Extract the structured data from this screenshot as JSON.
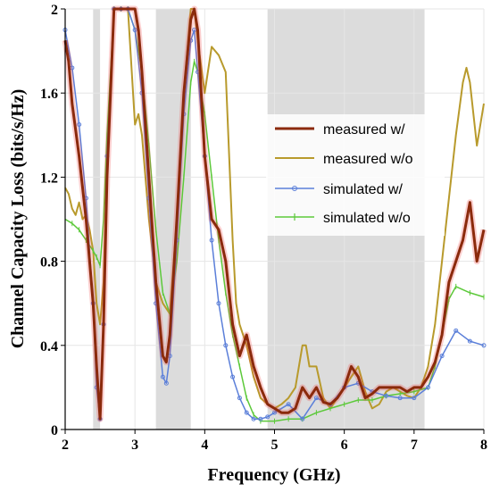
{
  "chart_data": {
    "type": "line",
    "title": "",
    "xlabel": "Frequency (GHz)",
    "ylabel": "Channel Capacity Loss (bits/s/Hz)",
    "xlim": [
      2,
      8
    ],
    "ylim": [
      0,
      2
    ],
    "x_ticks": [
      2,
      3,
      4,
      5,
      6,
      7,
      8
    ],
    "y_ticks": [
      0,
      0.4,
      0.8,
      1.2,
      1.6,
      2
    ],
    "grid": true,
    "legend_position": "right",
    "shaded_bands": [
      [
        2.4,
        2.5
      ],
      [
        3.3,
        3.8
      ],
      [
        4.9,
        7.15
      ]
    ],
    "series": [
      {
        "name": "measured w/",
        "color": "#8b2a0c",
        "x": [
          2.0,
          2.05,
          2.1,
          2.2,
          2.3,
          2.4,
          2.45,
          2.5,
          2.55,
          2.6,
          2.65,
          2.7,
          2.8,
          2.9,
          3.0,
          3.05,
          3.1,
          3.2,
          3.3,
          3.4,
          3.45,
          3.5,
          3.6,
          3.7,
          3.8,
          3.85,
          3.9,
          3.95,
          4.0,
          4.1,
          4.2,
          4.3,
          4.4,
          4.5,
          4.6,
          4.7,
          4.8,
          4.9,
          5.0,
          5.1,
          5.2,
          5.3,
          5.4,
          5.5,
          5.6,
          5.7,
          5.8,
          5.9,
          6.0,
          6.1,
          6.2,
          6.3,
          6.4,
          6.5,
          6.6,
          6.7,
          6.8,
          6.9,
          7.0,
          7.1,
          7.2,
          7.3,
          7.4,
          7.5,
          7.6,
          7.7,
          7.8,
          7.9,
          8.0
        ],
        "y": [
          1.85,
          1.75,
          1.55,
          1.3,
          1.0,
          0.6,
          0.3,
          0.05,
          0.5,
          1.2,
          1.6,
          2.0,
          2.0,
          2.0,
          2.0,
          1.9,
          1.7,
          1.2,
          0.7,
          0.35,
          0.32,
          0.45,
          1.0,
          1.6,
          1.95,
          2.0,
          1.9,
          1.6,
          1.3,
          1.0,
          0.95,
          0.8,
          0.5,
          0.35,
          0.45,
          0.3,
          0.2,
          0.12,
          0.1,
          0.08,
          0.08,
          0.1,
          0.2,
          0.15,
          0.2,
          0.13,
          0.12,
          0.15,
          0.2,
          0.3,
          0.25,
          0.15,
          0.17,
          0.2,
          0.2,
          0.2,
          0.2,
          0.18,
          0.2,
          0.2,
          0.25,
          0.32,
          0.45,
          0.7,
          0.8,
          0.9,
          1.08,
          0.8,
          0.95
        ]
      },
      {
        "name": "measured w/o",
        "color": "#b89a2c",
        "x": [
          2.0,
          2.05,
          2.1,
          2.15,
          2.2,
          2.25,
          2.3,
          2.35,
          2.4,
          2.45,
          2.5,
          2.55,
          2.6,
          2.7,
          2.8,
          2.9,
          3.0,
          3.05,
          3.1,
          3.2,
          3.3,
          3.4,
          3.5,
          3.6,
          3.7,
          3.8,
          3.85,
          3.9,
          4.0,
          4.1,
          4.2,
          4.3,
          4.4,
          4.45,
          4.5,
          4.6,
          4.7,
          4.8,
          4.9,
          5.0,
          5.1,
          5.2,
          5.3,
          5.4,
          5.45,
          5.5,
          5.6,
          5.7,
          5.8,
          5.9,
          6.0,
          6.1,
          6.2,
          6.3,
          6.4,
          6.5,
          6.6,
          6.7,
          6.8,
          6.9,
          7.0,
          7.1,
          7.2,
          7.3,
          7.4,
          7.5,
          7.6,
          7.7,
          7.75,
          7.8,
          7.9,
          8.0
        ],
        "y": [
          1.15,
          1.12,
          1.05,
          1.02,
          1.08,
          1.0,
          1.02,
          0.95,
          0.85,
          0.6,
          0.5,
          0.7,
          1.3,
          2.0,
          2.0,
          2.0,
          1.45,
          1.5,
          1.4,
          1.0,
          0.7,
          0.6,
          0.55,
          1.0,
          1.6,
          2.0,
          2.0,
          1.85,
          1.6,
          1.82,
          1.78,
          1.7,
          0.9,
          0.6,
          0.5,
          0.4,
          0.25,
          0.15,
          0.12,
          0.1,
          0.12,
          0.15,
          0.2,
          0.4,
          0.4,
          0.3,
          0.3,
          0.15,
          0.1,
          0.15,
          0.2,
          0.25,
          0.3,
          0.18,
          0.1,
          0.12,
          0.18,
          0.2,
          0.18,
          0.16,
          0.15,
          0.2,
          0.3,
          0.5,
          0.8,
          1.1,
          1.4,
          1.65,
          1.72,
          1.65,
          1.35,
          1.55
        ]
      },
      {
        "name": "simulated w/",
        "color": "#5b7fd9",
        "x": [
          2.0,
          2.1,
          2.2,
          2.3,
          2.4,
          2.45,
          2.5,
          2.55,
          2.6,
          2.7,
          2.8,
          2.9,
          3.0,
          3.1,
          3.2,
          3.3,
          3.4,
          3.45,
          3.5,
          3.6,
          3.7,
          3.8,
          3.85,
          3.9,
          4.0,
          4.1,
          4.2,
          4.3,
          4.4,
          4.5,
          4.6,
          4.7,
          4.8,
          4.9,
          5.0,
          5.2,
          5.4,
          5.6,
          5.8,
          6.0,
          6.2,
          6.4,
          6.6,
          6.8,
          7.0,
          7.2,
          7.4,
          7.6,
          7.8,
          8.0
        ],
        "y": [
          1.9,
          1.72,
          1.45,
          1.1,
          0.6,
          0.2,
          0.05,
          0.5,
          1.3,
          2.0,
          2.0,
          2.0,
          1.9,
          1.6,
          1.1,
          0.6,
          0.25,
          0.22,
          0.35,
          0.9,
          1.5,
          1.85,
          1.9,
          1.7,
          1.3,
          0.9,
          0.6,
          0.4,
          0.25,
          0.15,
          0.08,
          0.05,
          0.05,
          0.06,
          0.08,
          0.12,
          0.05,
          0.15,
          0.12,
          0.2,
          0.22,
          0.18,
          0.16,
          0.15,
          0.15,
          0.2,
          0.35,
          0.47,
          0.42,
          0.4
        ]
      },
      {
        "name": "simulated w/o",
        "color": "#5cc93a",
        "x": [
          2.0,
          2.1,
          2.2,
          2.3,
          2.4,
          2.45,
          2.5,
          2.55,
          2.6,
          2.7,
          2.8,
          2.9,
          3.0,
          3.1,
          3.2,
          3.3,
          3.4,
          3.5,
          3.6,
          3.7,
          3.8,
          3.85,
          3.9,
          4.0,
          4.1,
          4.2,
          4.3,
          4.4,
          4.5,
          4.6,
          4.7,
          4.8,
          5.0,
          5.2,
          5.4,
          5.6,
          5.8,
          6.0,
          6.2,
          6.4,
          6.6,
          6.8,
          7.0,
          7.2,
          7.3,
          7.4,
          7.5,
          7.6,
          7.8,
          8.0
        ],
        "y": [
          1.0,
          0.98,
          0.95,
          0.9,
          0.85,
          0.82,
          0.78,
          1.0,
          1.4,
          2.0,
          2.0,
          2.0,
          1.9,
          1.7,
          1.35,
          0.95,
          0.65,
          0.55,
          0.8,
          1.2,
          1.65,
          1.75,
          1.7,
          1.5,
          1.2,
          0.9,
          0.65,
          0.45,
          0.3,
          0.15,
          0.07,
          0.04,
          0.04,
          0.05,
          0.05,
          0.08,
          0.1,
          0.12,
          0.14,
          0.14,
          0.16,
          0.17,
          0.18,
          0.2,
          0.3,
          0.45,
          0.62,
          0.68,
          0.65,
          0.63
        ]
      }
    ]
  }
}
